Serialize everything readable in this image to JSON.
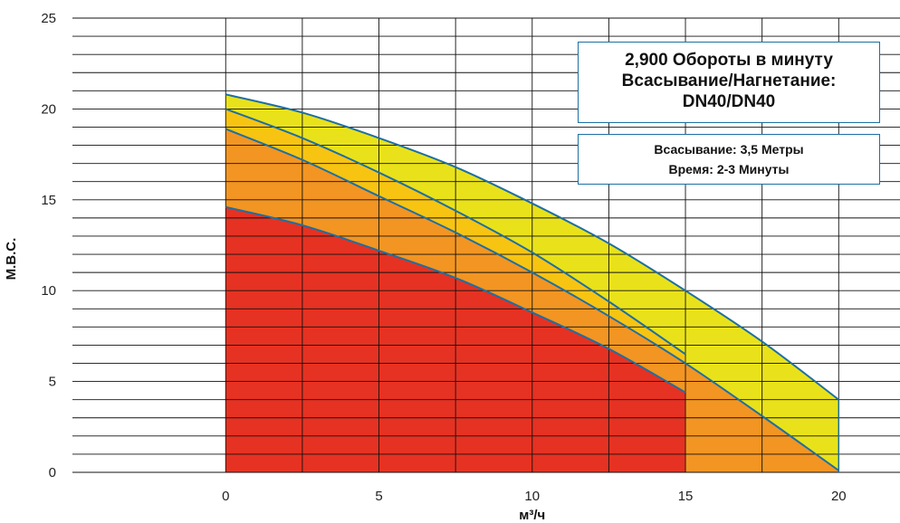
{
  "chart_data": {
    "type": "area",
    "xlabel": "м³/ч",
    "ylabel": "М.В.С.",
    "xlim": [
      -5,
      22
    ],
    "ylim": [
      0,
      25
    ],
    "x_ticks": [
      0,
      5,
      10,
      15,
      20
    ],
    "y_ticks": [
      0,
      5,
      10,
      15,
      20,
      25
    ],
    "grid": true,
    "colors": {
      "red": "#e53222",
      "orange": "#f29522",
      "amber": "#f8c412",
      "yellow": "#e9e21a",
      "curve": "#1d6fa3",
      "grid": "#111111"
    },
    "series": [
      {
        "x": [
          0,
          2.5,
          5,
          7.5,
          10,
          12.5,
          15
        ],
        "y": [
          14.6,
          13.6,
          12.2,
          10.7,
          8.8,
          6.8,
          4.4
        ]
      },
      {
        "x": [
          0,
          2.5,
          5,
          7.5,
          10,
          12.5,
          15,
          17.5,
          20
        ],
        "y": [
          18.9,
          17.2,
          15.2,
          13.2,
          11.0,
          8.6,
          6.0,
          3.1,
          0.1
        ]
      },
      {
        "x": [
          0,
          2.5,
          5,
          7.5,
          10,
          12.5,
          15
        ],
        "y": [
          20.0,
          18.4,
          16.5,
          14.4,
          12.1,
          9.4,
          6.5
        ]
      },
      {
        "x": [
          0,
          2.5,
          5,
          7.5,
          10,
          12.5,
          15,
          17.5,
          20
        ],
        "y": [
          20.8,
          19.8,
          18.4,
          16.8,
          14.8,
          12.6,
          10.0,
          7.2,
          4.0
        ]
      }
    ],
    "annotations": {
      "main": [
        "2,900 Обороты в минуту",
        "Всасывание/Нагнетание:",
        "DN40/DN40"
      ],
      "sub": [
        "Всасывание: 3,5 Метры",
        "Время: 2-3 Минуты"
      ]
    }
  }
}
